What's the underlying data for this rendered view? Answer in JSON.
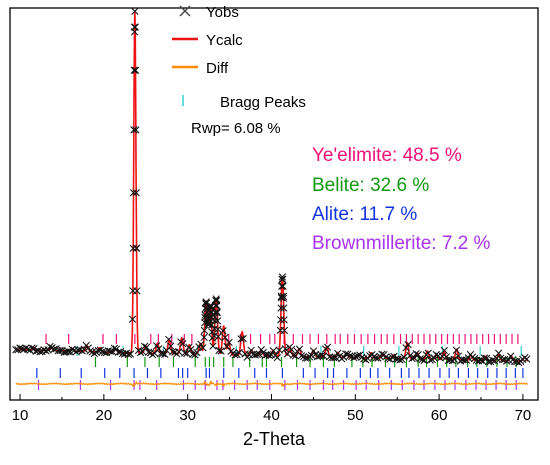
{
  "chart_data": {
    "type": "line",
    "xlabel": "2-Theta",
    "ylabel": "",
    "xlim": [
      8.8,
      71.8
    ],
    "ylim": [
      -9,
      100
    ],
    "x_ticks": [
      10,
      20,
      30,
      40,
      50,
      60,
      70
    ],
    "y_axis_ticks_visible": false,
    "grid": false,
    "legend_position": "top",
    "legend": [
      {
        "label": "Yobs",
        "marker": "x",
        "color": "#333333"
      },
      {
        "label": "Ycalc",
        "marker": "line",
        "color": "#ee1111"
      },
      {
        "label": "Diff",
        "marker": "line",
        "color": "#ff8c00"
      },
      {
        "label": "Bragg Peaks",
        "marker": "tick",
        "color": "#33cccc"
      }
    ],
    "rwp_label": "Rwp= 6.08 %",
    "phases": [
      {
        "label": "Ye'elimite: 48.5 %",
        "color": "#ee1177",
        "fraction": 48.5
      },
      {
        "label": "Belite: 32.6 %",
        "color": "#119911",
        "fraction": 32.6
      },
      {
        "label": "Alite: 11.7 %",
        "color": "#1133dd",
        "fraction": 11.7
      },
      {
        "label": "Brownmillerite: 7.2 %",
        "color": "#aa33ee",
        "fraction": 7.2
      }
    ],
    "background": {
      "x": [
        9.5,
        15,
        20,
        25,
        30,
        35,
        40,
        45,
        50,
        55,
        60,
        65,
        70.5
      ],
      "y": [
        5.0,
        4.7,
        4.3,
        4.0,
        3.8,
        3.5,
        3.3,
        3.0,
        2.7,
        2.5,
        2.2,
        2.0,
        1.8
      ]
    },
    "peaks": [
      {
        "x": 11.6,
        "height": 0.8
      },
      {
        "x": 13.7,
        "height": 0.8
      },
      {
        "x": 16.2,
        "height": 0.7
      },
      {
        "x": 18.0,
        "height": 1.6
      },
      {
        "x": 19.5,
        "height": 1.2
      },
      {
        "x": 21.4,
        "height": 0.9
      },
      {
        "x": 23.7,
        "height": 95
      },
      {
        "x": 25.0,
        "height": 2.0
      },
      {
        "x": 26.4,
        "height": 2.8
      },
      {
        "x": 27.8,
        "height": 3.8
      },
      {
        "x": 29.3,
        "height": 4.4
      },
      {
        "x": 30.2,
        "height": 2.6
      },
      {
        "x": 31.5,
        "height": 3.0
      },
      {
        "x": 32.2,
        "height": 14.5
      },
      {
        "x": 32.7,
        "height": 13.5
      },
      {
        "x": 33.4,
        "height": 15.5
      },
      {
        "x": 34.3,
        "height": 8.0
      },
      {
        "x": 34.9,
        "height": 3.5
      },
      {
        "x": 36.5,
        "height": 6.5
      },
      {
        "x": 37.6,
        "height": 1.5
      },
      {
        "x": 38.8,
        "height": 1.2
      },
      {
        "x": 40.2,
        "height": 1.5
      },
      {
        "x": 41.3,
        "height": 22.0
      },
      {
        "x": 42.2,
        "height": 2.5
      },
      {
        "x": 43.3,
        "height": 2.2
      },
      {
        "x": 45.0,
        "height": 1.8
      },
      {
        "x": 46.6,
        "height": 3.0
      },
      {
        "x": 47.9,
        "height": 1.4
      },
      {
        "x": 49.0,
        "height": 1.2
      },
      {
        "x": 50.5,
        "height": 1.1
      },
      {
        "x": 51.9,
        "height": 1.5
      },
      {
        "x": 53.3,
        "height": 1.2
      },
      {
        "x": 54.6,
        "height": 1.0
      },
      {
        "x": 56.2,
        "height": 4.5
      },
      {
        "x": 57.4,
        "height": 1.7
      },
      {
        "x": 58.6,
        "height": 2.3
      },
      {
        "x": 59.7,
        "height": 1.5
      },
      {
        "x": 60.6,
        "height": 2.2
      },
      {
        "x": 62.1,
        "height": 3.0
      },
      {
        "x": 63.8,
        "height": 1.4
      },
      {
        "x": 65.5,
        "height": 1.2
      },
      {
        "x": 67.1,
        "height": 1.6
      },
      {
        "x": 68.6,
        "height": 1.4
      },
      {
        "x": 70.2,
        "height": 1.1
      }
    ],
    "bragg_ticks": {
      "Ye'elimite": [
        13.1,
        15.8,
        19.9,
        21.5,
        23.7,
        25.6,
        26.5,
        28.1,
        29.6,
        30.5,
        31.9,
        33.7,
        34.9,
        36.3,
        37.5,
        38.7,
        39.8,
        40.4,
        41.5,
        42.6,
        43.7,
        44.6,
        45.6,
        46.6,
        47.6,
        48.2,
        49.1,
        49.9,
        50.7,
        51.5,
        52.3,
        53.1,
        53.8,
        54.6,
        55.4,
        56.1,
        56.8,
        57.5,
        58.2,
        58.9,
        59.6,
        60.3,
        61.0,
        61.7,
        62.4,
        63.1,
        63.8,
        64.5,
        65.2,
        65.9,
        66.6,
        67.3,
        68.0,
        68.7,
        69.4
      ],
      "Belite": [
        19.0,
        22.8,
        24.9,
        26.6,
        28.3,
        30.9,
        32.1,
        32.6,
        33.1,
        34.3,
        35.4,
        37.4,
        38.9,
        39.4,
        41.2,
        43.0,
        44.6,
        46.2,
        47.5,
        49.6,
        50.9,
        52.0,
        53.6,
        54.7,
        56.1,
        57.5,
        58.5,
        59.8,
        60.9,
        62.0,
        63.4,
        64.5,
        65.7,
        66.9,
        68.1,
        69.2
      ],
      "Alite": [
        12.0,
        14.8,
        17.3,
        20.1,
        21.9,
        23.6,
        25.2,
        26.8,
        28.9,
        29.4,
        30.0,
        32.2,
        32.6,
        34.3,
        36.1,
        38.0,
        39.4,
        41.3,
        43.8,
        45.2,
        46.7,
        47.4,
        49.0,
        50.6,
        51.8,
        52.7,
        54.1,
        55.5,
        56.4,
        57.6,
        58.8,
        60.1,
        61.2,
        62.3,
        63.5,
        64.6,
        65.8,
        66.9,
        68.0,
        69.1,
        70.0
      ],
      "Brownmillerite": [
        12.2,
        17.2,
        20.8,
        23.6,
        24.3,
        26.3,
        29.5,
        30.9,
        32.1,
        33.5,
        34.2,
        35.6,
        37.1,
        38.3,
        39.8,
        41.6,
        43.1,
        44.6,
        46.2,
        47.3,
        48.6,
        50.1,
        51.3,
        52.8,
        54.3,
        55.6,
        57.0,
        58.2,
        59.5,
        60.7,
        61.9,
        63.2,
        64.4,
        65.6,
        66.8,
        68.0,
        69.2
      ]
    },
    "bragg_colors": {
      "Ye'elimite": "#ee1177",
      "Belite": "#119911",
      "Alite": "#1133dd",
      "Brownmillerite": "#aa33ee",
      "extra": "#33cccc"
    },
    "bragg_extra_ticks": [
      16.8,
      22.3,
      27.1,
      31.2,
      35.8,
      40.9,
      45.9,
      51.0,
      55.2,
      60.4,
      64.9,
      69.8
    ]
  }
}
